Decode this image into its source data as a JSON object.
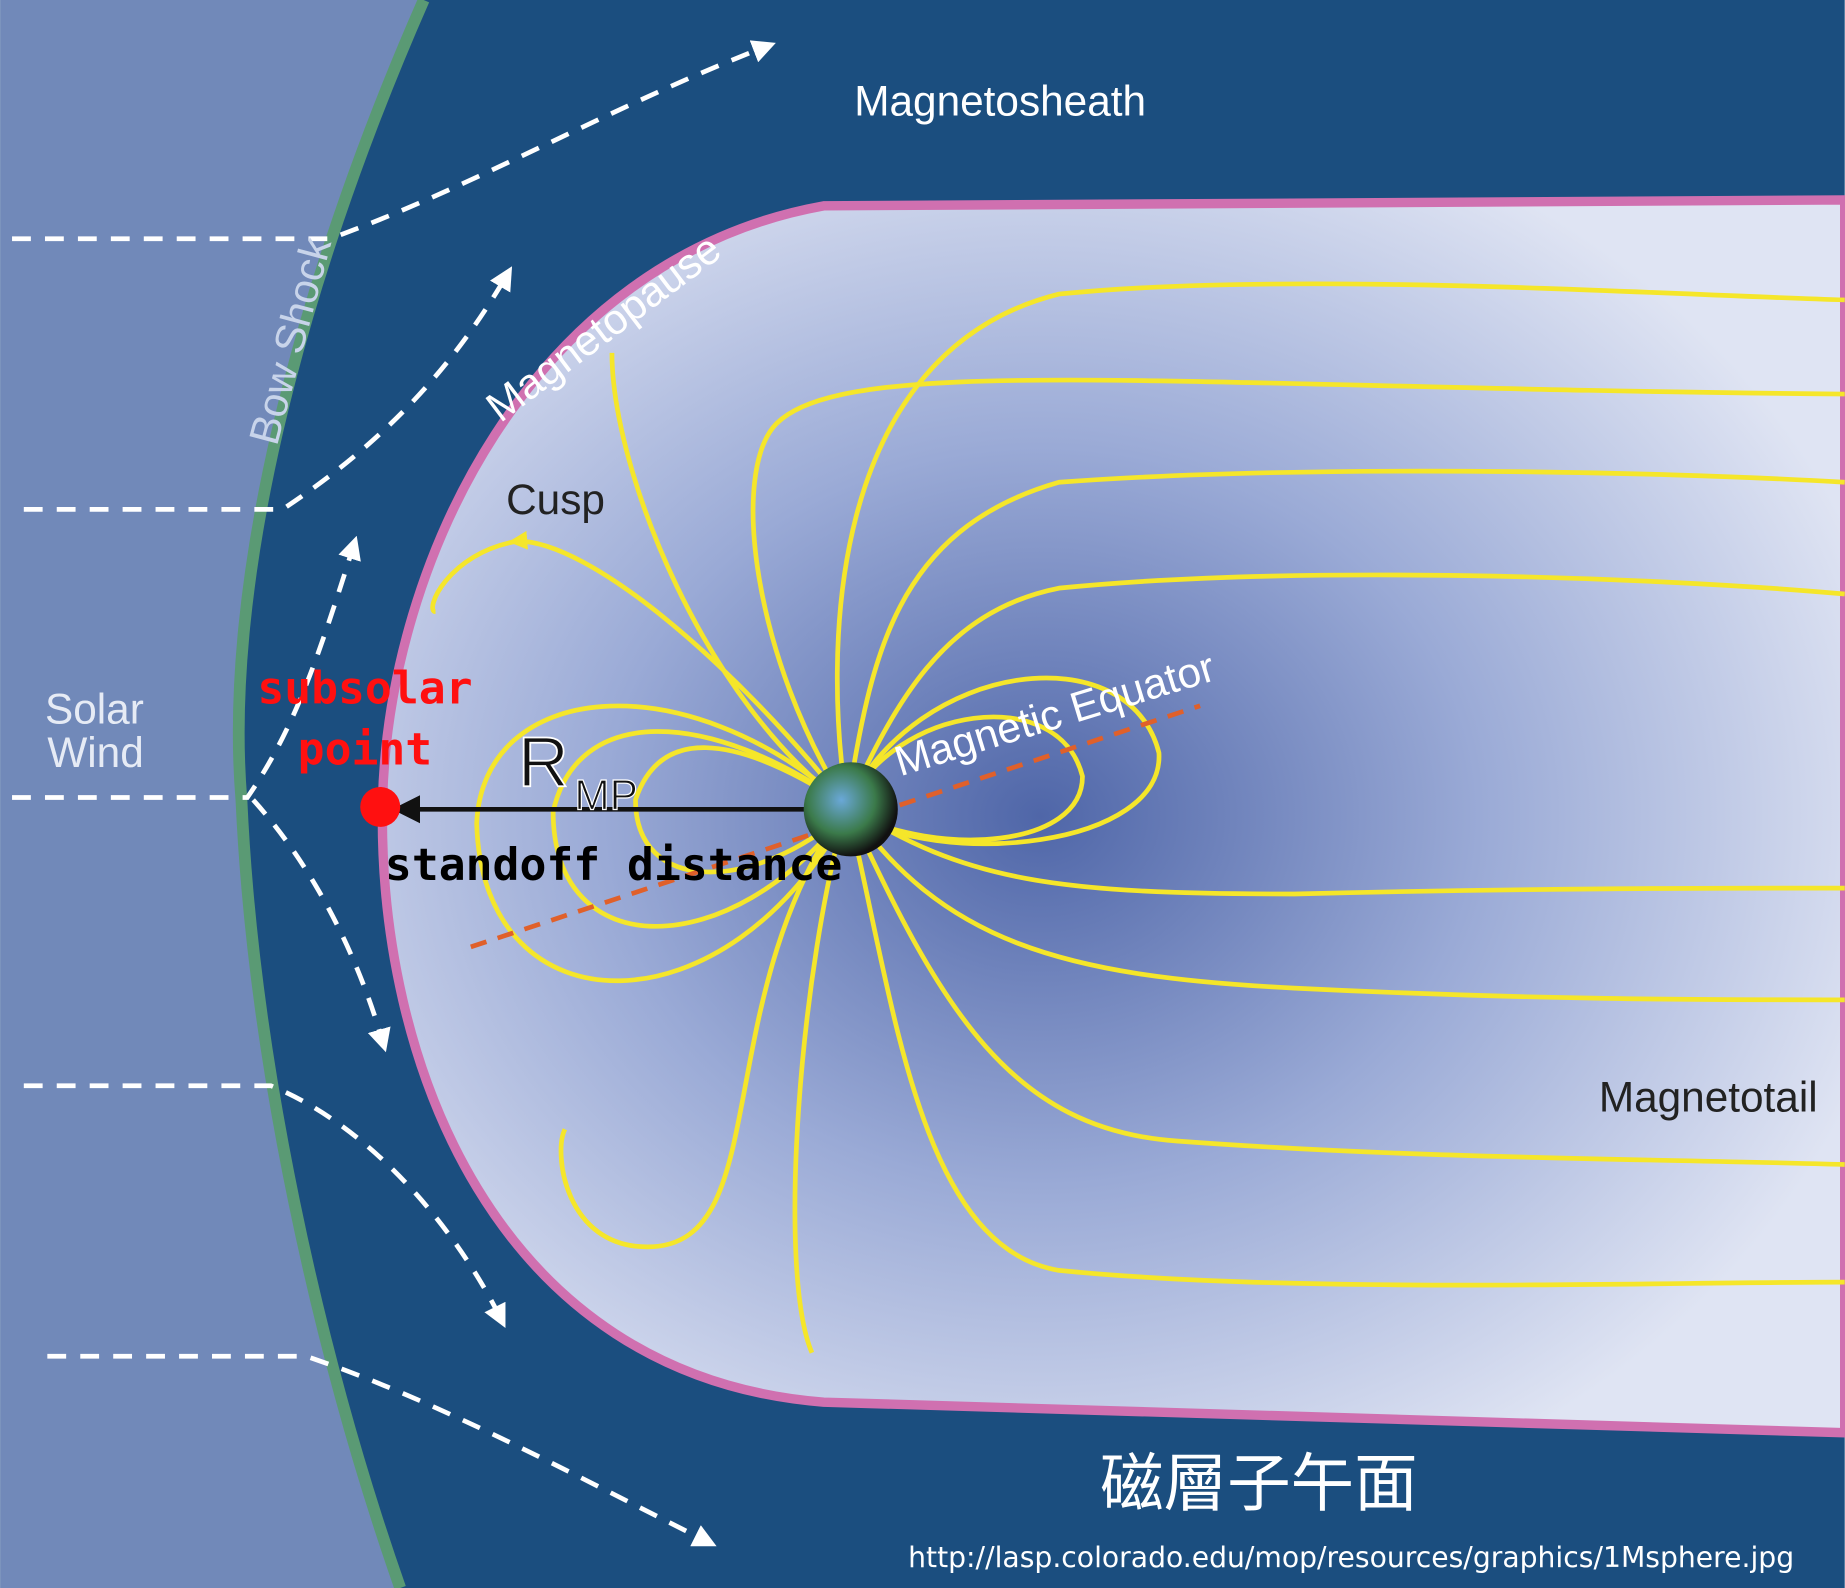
{
  "labels": {
    "magnetosheath": "Magnetosheath",
    "bow_shock": "Bow Shock",
    "magnetopause": "Magnetopause",
    "cusp": "Cusp",
    "solar_wind": [
      "Solar",
      "Wind"
    ],
    "magnetic_equator": "Magnetic Equator",
    "magnetotail": "Magnetotail"
  },
  "annotations": {
    "subsolar_point": [
      "subsolar",
      "point"
    ],
    "rmp": {
      "main": "R",
      "subscript": "MP"
    },
    "standoff_distance": "standoff distance"
  },
  "caption": {
    "title": "磁層子午面",
    "source": "http://lasp.colorado.edu/mop/resources/graphics/1Msphere.jpg"
  }
}
